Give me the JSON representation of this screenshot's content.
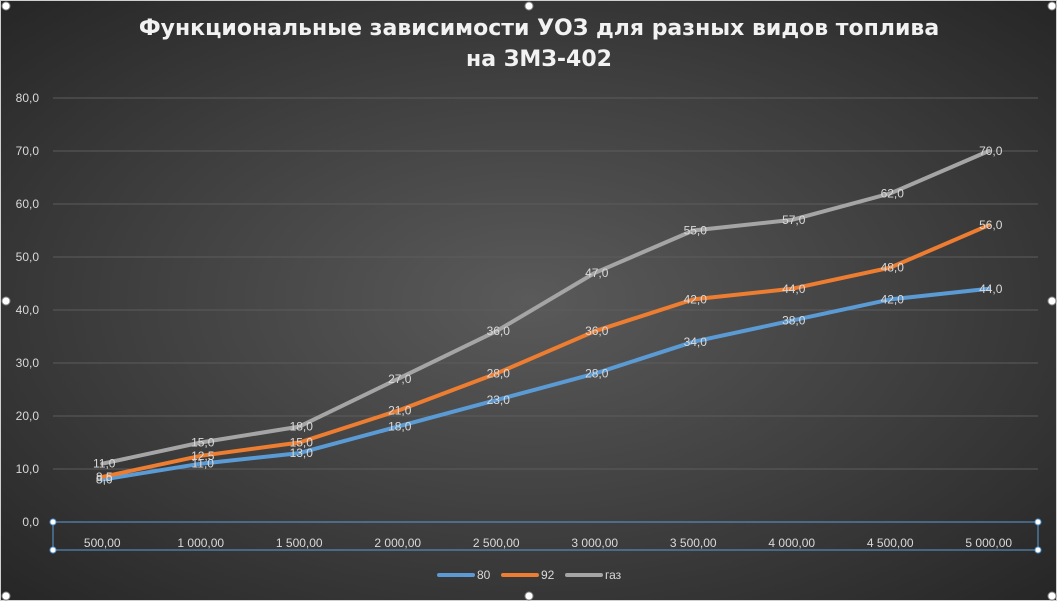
{
  "chart_data": {
    "type": "line",
    "title_line1": "Функциональные зависимости УОЗ для разных видов топлива",
    "title_line2": "на ЗМЗ-402",
    "categories": [
      "500,00",
      "1 000,00",
      "1 500,00",
      "2 000,00",
      "2 500,00",
      "3 000,00",
      "3 500,00",
      "4 000,00",
      "4 500,00",
      "5 000,00"
    ],
    "ylim": [
      0,
      80
    ],
    "yticks": [
      "0,0",
      "10,0",
      "20,0",
      "30,0",
      "40,0",
      "50,0",
      "60,0",
      "70,0",
      "80,0"
    ],
    "grid": true,
    "legend_position": "bottom",
    "series": [
      {
        "name": "80",
        "color": "#5b9bd5",
        "values": [
          8,
          11,
          13,
          18,
          23,
          28,
          34,
          38,
          42,
          44
        ],
        "labels": [
          "8,0",
          "11,0",
          "13,0",
          "18,0",
          "23,0",
          "28,0",
          "34,0",
          "38,0",
          "42,0",
          "44,0"
        ]
      },
      {
        "name": "92",
        "color": "#ed7d31",
        "values": [
          8.5,
          12.5,
          15,
          21,
          28,
          36,
          42,
          44,
          48,
          56
        ],
        "labels": [
          "8,5",
          "12,5",
          "15,0",
          "21,0",
          "28,0",
          "36,0",
          "42,0",
          "44,0",
          "48,0",
          "56,0"
        ]
      },
      {
        "name": "газ",
        "color": "#a5a5a5",
        "values": [
          11,
          15,
          18,
          27,
          36,
          47,
          55,
          57,
          62,
          70
        ],
        "labels": [
          "11,0",
          "15,0",
          "18,0",
          "27,0",
          "36,0",
          "47,0",
          "55,0",
          "57,0",
          "62,0",
          "70,0"
        ]
      }
    ]
  }
}
